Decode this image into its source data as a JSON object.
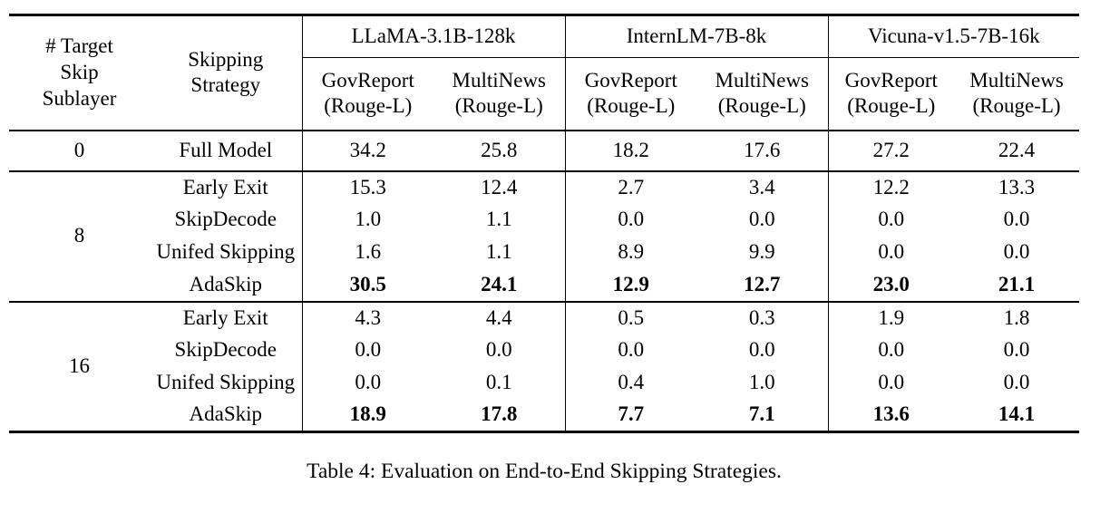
{
  "colors": {
    "background": "#ffffff",
    "text": "#000000",
    "rule": "#000000"
  },
  "table": {
    "skip_header_lines": [
      "# Target",
      "Skip",
      "Sublayer"
    ],
    "strategy_header_lines": [
      "Skipping",
      "Strategy"
    ],
    "groups": [
      {
        "model": "LLaMA-3.1B-128k",
        "cols": [
          {
            "dataset": "GovReport",
            "metric": "(Rouge-L)"
          },
          {
            "dataset": "MultiNews",
            "metric": "(Rouge-L)"
          }
        ]
      },
      {
        "model": "InternLM-7B-8k",
        "cols": [
          {
            "dataset": "GovReport",
            "metric": "(Rouge-L)"
          },
          {
            "dataset": "MultiNews",
            "metric": "(Rouge-L)"
          }
        ]
      },
      {
        "model": "Vicuna-v1.5-7B-16k",
        "cols": [
          {
            "dataset": "GovReport",
            "metric": "(Rouge-L)"
          },
          {
            "dataset": "MultiNews",
            "metric": "(Rouge-L)"
          }
        ]
      }
    ],
    "sections": [
      {
        "skip_count": "0",
        "rows": [
          {
            "strategy": "Full Model",
            "bold": false,
            "values": [
              "34.2",
              "25.8",
              "18.2",
              "17.6",
              "27.2",
              "22.4"
            ]
          }
        ]
      },
      {
        "skip_count": "8",
        "rows": [
          {
            "strategy": "Early Exit",
            "bold": false,
            "values": [
              "15.3",
              "12.4",
              "2.7",
              "3.4",
              "12.2",
              "13.3"
            ]
          },
          {
            "strategy": "SkipDecode",
            "bold": false,
            "values": [
              "1.0",
              "1.1",
              "0.0",
              "0.0",
              "0.0",
              "0.0"
            ]
          },
          {
            "strategy": "Unifed Skipping",
            "bold": false,
            "values": [
              "1.6",
              "1.1",
              "8.9",
              "9.9",
              "0.0",
              "0.0"
            ]
          },
          {
            "strategy": "AdaSkip",
            "bold": true,
            "values": [
              "30.5",
              "24.1",
              "12.9",
              "12.7",
              "23.0",
              "21.1"
            ]
          }
        ]
      },
      {
        "skip_count": "16",
        "rows": [
          {
            "strategy": "Early Exit",
            "bold": false,
            "values": [
              "4.3",
              "4.4",
              "0.5",
              "0.3",
              "1.9",
              "1.8"
            ]
          },
          {
            "strategy": "SkipDecode",
            "bold": false,
            "values": [
              "0.0",
              "0.0",
              "0.0",
              "0.0",
              "0.0",
              "0.0"
            ]
          },
          {
            "strategy": "Unifed Skipping",
            "bold": false,
            "values": [
              "0.0",
              "0.1",
              "0.4",
              "1.0",
              "0.0",
              "0.0"
            ]
          },
          {
            "strategy": "AdaSkip",
            "bold": true,
            "values": [
              "18.9",
              "17.8",
              "7.7",
              "7.1",
              "13.6",
              "14.1"
            ]
          }
        ]
      }
    ]
  },
  "caption": "Table 4: Evaluation on End-to-End Skipping Strategies."
}
